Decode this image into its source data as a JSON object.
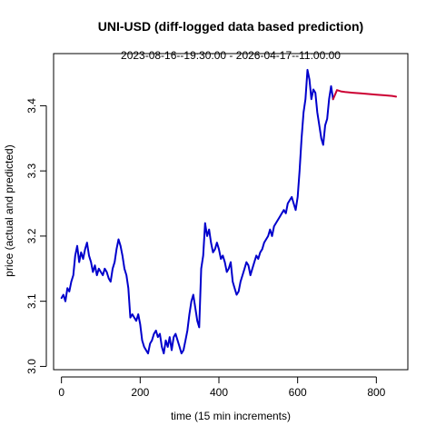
{
  "chart_data": {
    "type": "line",
    "title": "UNI-USD (diff-logged data based prediction)",
    "subtitle": "2023-08-16--19:30:00  -  2026-04-17--11:00:00",
    "xlabel": "time (15 min increments)",
    "ylabel": "price (actual and predicted)",
    "xlim": [
      -20,
      880
    ],
    "ylim": [
      2.995,
      3.48
    ],
    "xticks": [
      0,
      200,
      400,
      600,
      800
    ],
    "yticks": [
      3.0,
      3.1,
      3.2,
      3.3,
      3.4
    ],
    "xtick_labels": [
      "0",
      "200",
      "400",
      "600",
      "800"
    ],
    "ytick_labels": [
      "3.0",
      "3.1",
      "3.2",
      "3.3",
      "3.4"
    ],
    "grid": false,
    "series": [
      {
        "color": "#0000cc",
        "x": [
          0,
          5,
          10,
          15,
          20,
          25,
          30,
          35,
          40,
          45,
          50,
          55,
          60,
          65,
          70,
          75,
          80,
          85,
          90,
          95,
          100,
          105,
          110,
          115,
          120,
          125,
          130,
          135,
          140,
          145,
          150,
          155,
          160,
          165,
          170,
          175,
          180,
          185,
          190,
          195,
          200,
          205,
          210,
          215,
          220,
          225,
          230,
          235,
          240,
          245,
          250,
          255,
          260,
          265,
          270,
          275,
          280,
          285,
          290,
          295,
          300,
          305,
          310,
          315,
          320,
          325,
          330,
          335,
          340,
          345,
          350,
          355,
          360,
          365,
          370,
          375,
          380,
          385,
          390,
          395,
          400,
          405,
          410,
          415,
          420,
          425,
          430,
          435,
          440,
          445,
          450,
          455,
          460,
          465,
          470,
          475,
          480,
          485,
          490,
          495,
          500,
          505,
          510,
          515,
          520,
          525,
          530,
          535,
          540,
          545,
          550,
          555,
          560,
          565,
          570,
          575,
          580,
          585,
          590,
          595,
          600,
          605,
          610,
          615,
          620,
          625,
          630,
          635,
          640,
          645,
          650,
          655,
          660,
          665,
          670,
          675,
          680,
          685,
          690
        ],
        "y": [
          3.105,
          3.11,
          3.1,
          3.12,
          3.115,
          3.13,
          3.14,
          3.17,
          3.185,
          3.16,
          3.175,
          3.165,
          3.18,
          3.19,
          3.17,
          3.16,
          3.145,
          3.155,
          3.14,
          3.15,
          3.145,
          3.14,
          3.15,
          3.145,
          3.135,
          3.13,
          3.15,
          3.16,
          3.18,
          3.195,
          3.185,
          3.17,
          3.15,
          3.14,
          3.12,
          3.075,
          3.08,
          3.075,
          3.07,
          3.08,
          3.065,
          3.04,
          3.03,
          3.025,
          3.02,
          3.035,
          3.04,
          3.05,
          3.055,
          3.045,
          3.05,
          3.03,
          3.02,
          3.04,
          3.03,
          3.045,
          3.025,
          3.045,
          3.05,
          3.04,
          3.03,
          3.02,
          3.025,
          3.04,
          3.055,
          3.08,
          3.1,
          3.11,
          3.09,
          3.07,
          3.06,
          3.15,
          3.17,
          3.22,
          3.2,
          3.21,
          3.19,
          3.175,
          3.18,
          3.19,
          3.18,
          3.165,
          3.17,
          3.16,
          3.145,
          3.15,
          3.16,
          3.13,
          3.12,
          3.11,
          3.115,
          3.13,
          3.14,
          3.15,
          3.16,
          3.155,
          3.14,
          3.15,
          3.16,
          3.17,
          3.165,
          3.175,
          3.18,
          3.19,
          3.195,
          3.2,
          3.21,
          3.2,
          3.215,
          3.22,
          3.225,
          3.23,
          3.235,
          3.24,
          3.235,
          3.25,
          3.255,
          3.26,
          3.25,
          3.24,
          3.26,
          3.3,
          3.35,
          3.39,
          3.41,
          3.455,
          3.44,
          3.41,
          3.425,
          3.42,
          3.39,
          3.37,
          3.35,
          3.34,
          3.37,
          3.38,
          3.41,
          3.43,
          3.41
        ]
      },
      {
        "color": "#cc0033",
        "x": [
          690,
          700,
          710,
          720,
          740,
          760,
          780,
          800,
          820,
          840,
          850
        ],
        "y": [
          3.41,
          3.424,
          3.422,
          3.421,
          3.42,
          3.419,
          3.418,
          3.417,
          3.416,
          3.415,
          3.414
        ]
      }
    ]
  }
}
